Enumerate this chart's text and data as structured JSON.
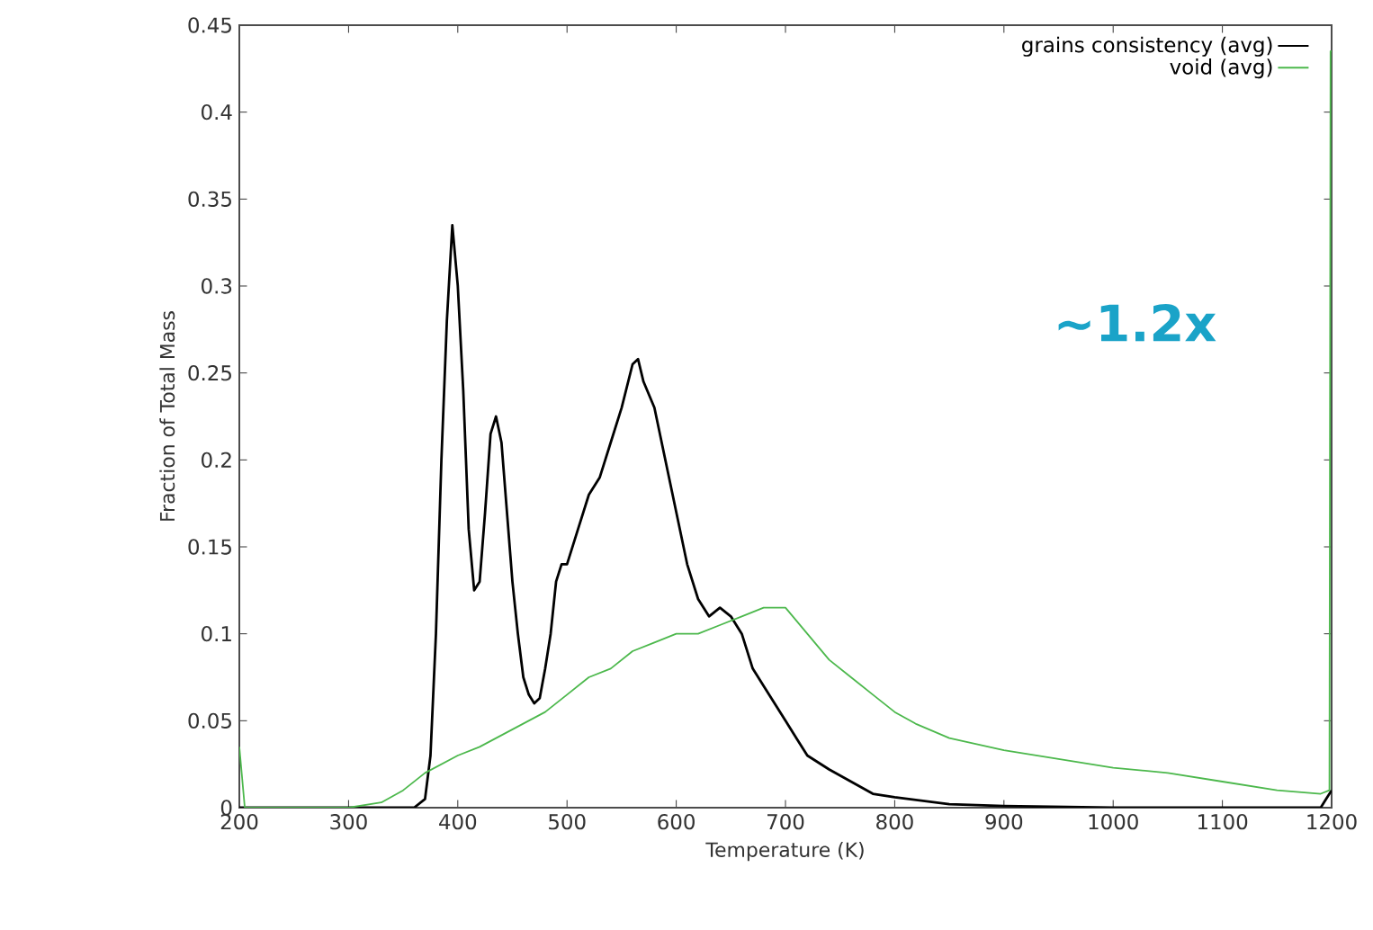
{
  "chart_data": {
    "type": "line",
    "xlabel": "Temperature (K)",
    "ylabel": "Fraction of Total Mass",
    "annotations": [
      "~1.2x"
    ],
    "xlim": [
      200,
      1200
    ],
    "xticks": [
      200,
      300,
      400,
      500,
      600,
      700,
      800,
      900,
      1000,
      1100,
      1200
    ],
    "ylim": [
      0,
      0.45
    ],
    "yticks": [
      0,
      0.05,
      0.1,
      0.15,
      0.2,
      0.25,
      0.3,
      0.35,
      0.4,
      0.45
    ],
    "grid": false,
    "legend": "top right",
    "marker": "none",
    "line_style": "solid",
    "series": [
      {
        "name": "grains consistency (avg)",
        "color": "#000000",
        "x": [
          200,
          360,
          370,
          375,
          380,
          385,
          390,
          395,
          400,
          405,
          410,
          415,
          420,
          425,
          430,
          435,
          440,
          445,
          450,
          455,
          460,
          465,
          470,
          475,
          480,
          485,
          490,
          495,
          500,
          510,
          520,
          530,
          540,
          550,
          560,
          565,
          570,
          580,
          590,
          600,
          610,
          620,
          630,
          640,
          650,
          660,
          670,
          680,
          690,
          700,
          710,
          720,
          740,
          760,
          780,
          800,
          850,
          900,
          1000,
          1190,
          1195,
          1200
        ],
        "values": [
          0,
          0,
          0.005,
          0.03,
          0.1,
          0.2,
          0.28,
          0.335,
          0.3,
          0.24,
          0.16,
          0.125,
          0.13,
          0.17,
          0.215,
          0.225,
          0.21,
          0.17,
          0.13,
          0.1,
          0.075,
          0.065,
          0.06,
          0.063,
          0.08,
          0.1,
          0.13,
          0.14,
          0.14,
          0.16,
          0.18,
          0.19,
          0.21,
          0.23,
          0.255,
          0.258,
          0.245,
          0.23,
          0.2,
          0.17,
          0.14,
          0.12,
          0.11,
          0.115,
          0.11,
          0.1,
          0.08,
          0.07,
          0.06,
          0.05,
          0.04,
          0.03,
          0.022,
          0.015,
          0.008,
          0.006,
          0.002,
          0.001,
          0,
          0,
          0.005,
          0.01
        ]
      },
      {
        "name": "void (avg)",
        "color": "#4cb84c",
        "x": [
          200,
          205,
          300,
          330,
          350,
          370,
          400,
          420,
          450,
          480,
          500,
          520,
          540,
          560,
          580,
          600,
          620,
          640,
          660,
          680,
          700,
          720,
          740,
          760,
          780,
          800,
          820,
          850,
          900,
          950,
          1000,
          1050,
          1100,
          1150,
          1190,
          1198,
          1199,
          1200
        ],
        "values": [
          0.035,
          0,
          0,
          0.003,
          0.01,
          0.02,
          0.03,
          0.035,
          0.045,
          0.055,
          0.065,
          0.075,
          0.08,
          0.09,
          0.095,
          0.1,
          0.1,
          0.105,
          0.11,
          0.115,
          0.115,
          0.1,
          0.085,
          0.075,
          0.065,
          0.055,
          0.048,
          0.04,
          0.033,
          0.028,
          0.023,
          0.02,
          0.015,
          0.01,
          0.008,
          0.01,
          0.435,
          0.435
        ]
      }
    ]
  }
}
